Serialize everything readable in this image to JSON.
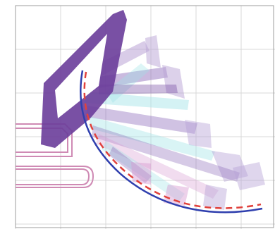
{
  "figure": {
    "description_free": true,
    "colors": {
      "background": "#ffffff",
      "grid": "#d9d9d9",
      "frame": "#9e9e9e",
      "arm_dark": "#6a3d9a",
      "arm_medium": "#8a66b8",
      "arm_light": "#b9a3d6",
      "arm_cyan": "#9fe3e6",
      "arm_pink": "#d79ad0",
      "machine_outline": "#cf8ab4",
      "trajectory_blue": "#2f3fae",
      "trajectory_red": "#e0413c"
    },
    "elements": {
      "machine_base": "excavator-base-outline",
      "boom": "boom-arm",
      "sweep_poses": "stick-and-bucket-poses",
      "trajectory_planned": "blue-solid-trajectory",
      "trajectory_reference": "red-dashed-trajectory"
    }
  }
}
